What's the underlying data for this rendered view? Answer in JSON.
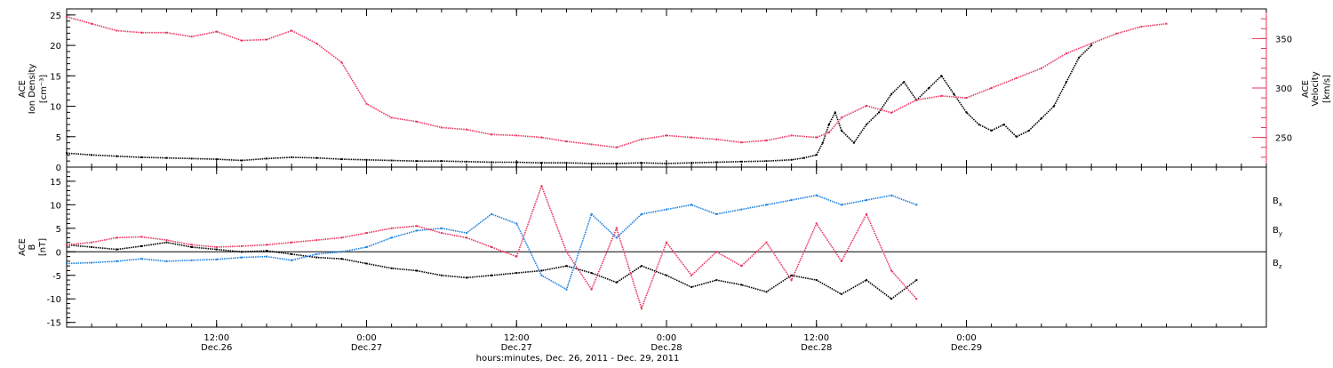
{
  "chart_data": [
    {
      "type": "scatter",
      "panel": "top",
      "left_axis": {
        "label_lines": [
          "ACE",
          "Ion Density",
          "[cm⁻³]"
        ],
        "ticks": [
          "0",
          "5",
          "10",
          "15",
          "20",
          "25"
        ],
        "ylim": [
          0,
          26
        ],
        "color": "#000000"
      },
      "right_axis": {
        "label_lines": [
          "ACE",
          "Velocity",
          "[km/s]"
        ],
        "ticks": [
          "250",
          "300",
          "350"
        ],
        "ylim": [
          220,
          380
        ],
        "color": "#e8365f"
      },
      "series": [
        {
          "name": "density",
          "color": "#000000",
          "points": [
            [
              0,
              2.3
            ],
            [
              2,
              2.0
            ],
            [
              4,
              1.8
            ],
            [
              6,
              1.6
            ],
            [
              8,
              1.5
            ],
            [
              10,
              1.4
            ],
            [
              12,
              1.3
            ],
            [
              14,
              1.1
            ],
            [
              16,
              1.4
            ],
            [
              18,
              1.6
            ],
            [
              20,
              1.5
            ],
            [
              22,
              1.3
            ],
            [
              24,
              1.2
            ],
            [
              26,
              1.1
            ],
            [
              28,
              1.0
            ],
            [
              30,
              1.0
            ],
            [
              32,
              0.9
            ],
            [
              34,
              0.8
            ],
            [
              36,
              0.8
            ],
            [
              38,
              0.7
            ],
            [
              40,
              0.7
            ],
            [
              42,
              0.6
            ],
            [
              44,
              0.6
            ],
            [
              46,
              0.7
            ],
            [
              48,
              0.6
            ],
            [
              50,
              0.7
            ],
            [
              52,
              0.8
            ],
            [
              54,
              0.9
            ],
            [
              56,
              1.0
            ],
            [
              58,
              1.2
            ],
            [
              59,
              1.5
            ],
            [
              60,
              2.0
            ],
            [
              60.5,
              4
            ],
            [
              61,
              7
            ],
            [
              61.5,
              9
            ],
            [
              62,
              6
            ],
            [
              63,
              4
            ],
            [
              64,
              7
            ],
            [
              65,
              9
            ],
            [
              66,
              12
            ],
            [
              67,
              14
            ],
            [
              68,
              11
            ],
            [
              69,
              13
            ],
            [
              70,
              15
            ],
            [
              71,
              12
            ],
            [
              72,
              9
            ],
            [
              73,
              7
            ],
            [
              74,
              6
            ],
            [
              75,
              7
            ],
            [
              76,
              5
            ],
            [
              77,
              6
            ],
            [
              78,
              8
            ],
            [
              79,
              10
            ],
            [
              80,
              14
            ],
            [
              81,
              18
            ],
            [
              82,
              20
            ]
          ]
        },
        {
          "name": "velocity",
          "color": "#e8365f",
          "points": [
            [
              0,
              372
            ],
            [
              2,
              365
            ],
            [
              4,
              358
            ],
            [
              6,
              356
            ],
            [
              8,
              356
            ],
            [
              10,
              352
            ],
            [
              12,
              357
            ],
            [
              14,
              348
            ],
            [
              16,
              349
            ],
            [
              18,
              358
            ],
            [
              20,
              345
            ],
            [
              22,
              326
            ],
            [
              24,
              284
            ],
            [
              26,
              270
            ],
            [
              28,
              266
            ],
            [
              30,
              260
            ],
            [
              32,
              258
            ],
            [
              34,
              253
            ],
            [
              36,
              252
            ],
            [
              38,
              250
            ],
            [
              40,
              246
            ],
            [
              42,
              243
            ],
            [
              44,
              240
            ],
            [
              46,
              248
            ],
            [
              48,
              252
            ],
            [
              50,
              250
            ],
            [
              52,
              248
            ],
            [
              54,
              245
            ],
            [
              56,
              247
            ],
            [
              58,
              252
            ],
            [
              60,
              250
            ],
            [
              61,
              255
            ],
            [
              62,
              270
            ],
            [
              64,
              282
            ],
            [
              66,
              275
            ],
            [
              68,
              288
            ],
            [
              70,
              292
            ],
            [
              72,
              290
            ],
            [
              74,
              300
            ],
            [
              76,
              310
            ],
            [
              78,
              320
            ],
            [
              80,
              335
            ],
            [
              82,
              345
            ],
            [
              84,
              355
            ],
            [
              86,
              362
            ],
            [
              88,
              365
            ]
          ]
        }
      ]
    },
    {
      "type": "scatter",
      "panel": "bottom",
      "left_axis": {
        "label_lines": [
          "ACE",
          "B",
          "[nT]"
        ],
        "ticks": [
          "-15",
          "-10",
          "-5",
          "0",
          "5",
          "10",
          "15"
        ],
        "ylim": [
          -16,
          18
        ]
      },
      "series": [
        {
          "name": "Bx",
          "color": "#000000",
          "points": [
            [
              0,
              1.5
            ],
            [
              2,
              1.0
            ],
            [
              4,
              0.5
            ],
            [
              6,
              1.2
            ],
            [
              8,
              2.0
            ],
            [
              10,
              1.0
            ],
            [
              12,
              0.5
            ],
            [
              14,
              0.0
            ],
            [
              16,
              0.2
            ],
            [
              18,
              -0.5
            ],
            [
              20,
              -1.2
            ],
            [
              22,
              -1.5
            ],
            [
              24,
              -2.5
            ],
            [
              26,
              -3.5
            ],
            [
              28,
              -4.0
            ],
            [
              30,
              -5.0
            ],
            [
              32,
              -5.5
            ],
            [
              34,
              -5.0
            ],
            [
              36,
              -4.5
            ],
            [
              38,
              -4.0
            ],
            [
              40,
              -3.0
            ],
            [
              42,
              -4.5
            ],
            [
              44,
              -6.5
            ],
            [
              46,
              -3.0
            ],
            [
              48,
              -5.0
            ],
            [
              50,
              -7.5
            ],
            [
              52,
              -6.0
            ],
            [
              54,
              -7.0
            ],
            [
              56,
              -8.5
            ],
            [
              58,
              -5.0
            ],
            [
              60,
              -6.0
            ],
            [
              62,
              -9.0
            ],
            [
              64,
              -6.0
            ],
            [
              66,
              -10.0
            ],
            [
              68,
              -6.0
            ]
          ]
        },
        {
          "name": "By",
          "color": "#1a7fe0",
          "points": [
            [
              0,
              -2.5
            ],
            [
              2,
              -2.3
            ],
            [
              4,
              -2.0
            ],
            [
              6,
              -1.5
            ],
            [
              8,
              -2.0
            ],
            [
              10,
              -1.8
            ],
            [
              12,
              -1.6
            ],
            [
              14,
              -1.2
            ],
            [
              16,
              -1.0
            ],
            [
              18,
              -1.8
            ],
            [
              20,
              -0.5
            ],
            [
              22,
              0.0
            ],
            [
              24,
              1.0
            ],
            [
              26,
              3.0
            ],
            [
              28,
              4.5
            ],
            [
              30,
              5.0
            ],
            [
              32,
              4.0
            ],
            [
              34,
              8.0
            ],
            [
              36,
              6.0
            ],
            [
              38,
              -5.0
            ],
            [
              40,
              -8.0
            ],
            [
              42,
              8.0
            ],
            [
              44,
              3.0
            ],
            [
              46,
              8.0
            ],
            [
              48,
              9.0
            ],
            [
              50,
              10.0
            ],
            [
              52,
              8.0
            ],
            [
              54,
              9.0
            ],
            [
              56,
              10.0
            ],
            [
              58,
              11.0
            ],
            [
              60,
              12.0
            ],
            [
              62,
              10.0
            ],
            [
              64,
              11.0
            ],
            [
              66,
              12.0
            ],
            [
              68,
              10.0
            ]
          ]
        },
        {
          "name": "Bz",
          "color": "#e8365f",
          "points": [
            [
              0,
              1.5
            ],
            [
              2,
              2.0
            ],
            [
              4,
              3.0
            ],
            [
              6,
              3.2
            ],
            [
              8,
              2.5
            ],
            [
              10,
              1.5
            ],
            [
              12,
              1.0
            ],
            [
              14,
              1.2
            ],
            [
              16,
              1.5
            ],
            [
              18,
              2.0
            ],
            [
              20,
              2.5
            ],
            [
              22,
              3.0
            ],
            [
              24,
              4.0
            ],
            [
              26,
              5.0
            ],
            [
              28,
              5.5
            ],
            [
              30,
              4.0
            ],
            [
              32,
              3.0
            ],
            [
              34,
              1.0
            ],
            [
              36,
              -1.0
            ],
            [
              38,
              14.0
            ],
            [
              40,
              0.0
            ],
            [
              42,
              -8.0
            ],
            [
              44,
              5.0
            ],
            [
              46,
              -12.0
            ],
            [
              48,
              2.0
            ],
            [
              50,
              -5.0
            ],
            [
              52,
              0.0
            ],
            [
              54,
              -3.0
            ],
            [
              56,
              2.0
            ],
            [
              58,
              -6.0
            ],
            [
              60,
              6.0
            ],
            [
              62,
              -2.0
            ],
            [
              64,
              8.0
            ],
            [
              66,
              -4.0
            ],
            [
              68,
              -10.0
            ]
          ]
        }
      ],
      "legend": [
        "B",
        "B",
        "B"
      ],
      "legend_subscripts": [
        "x",
        "y",
        "z"
      ]
    }
  ],
  "x_axis": {
    "time_ticks": [
      "12:00",
      "0:00",
      "12:00",
      "0:00",
      "12:00",
      "0:00"
    ],
    "date_ticks": [
      "Dec.26",
      "Dec.27",
      "Dec.27",
      "Dec.28",
      "Dec.28",
      "Dec.29"
    ],
    "xlabel": "hours:minutes, Dec. 26, 2011 - Dec. 29, 2011"
  },
  "colors": {
    "black": "#000000",
    "blue": "#1a7fe0",
    "pink": "#e8365f"
  }
}
